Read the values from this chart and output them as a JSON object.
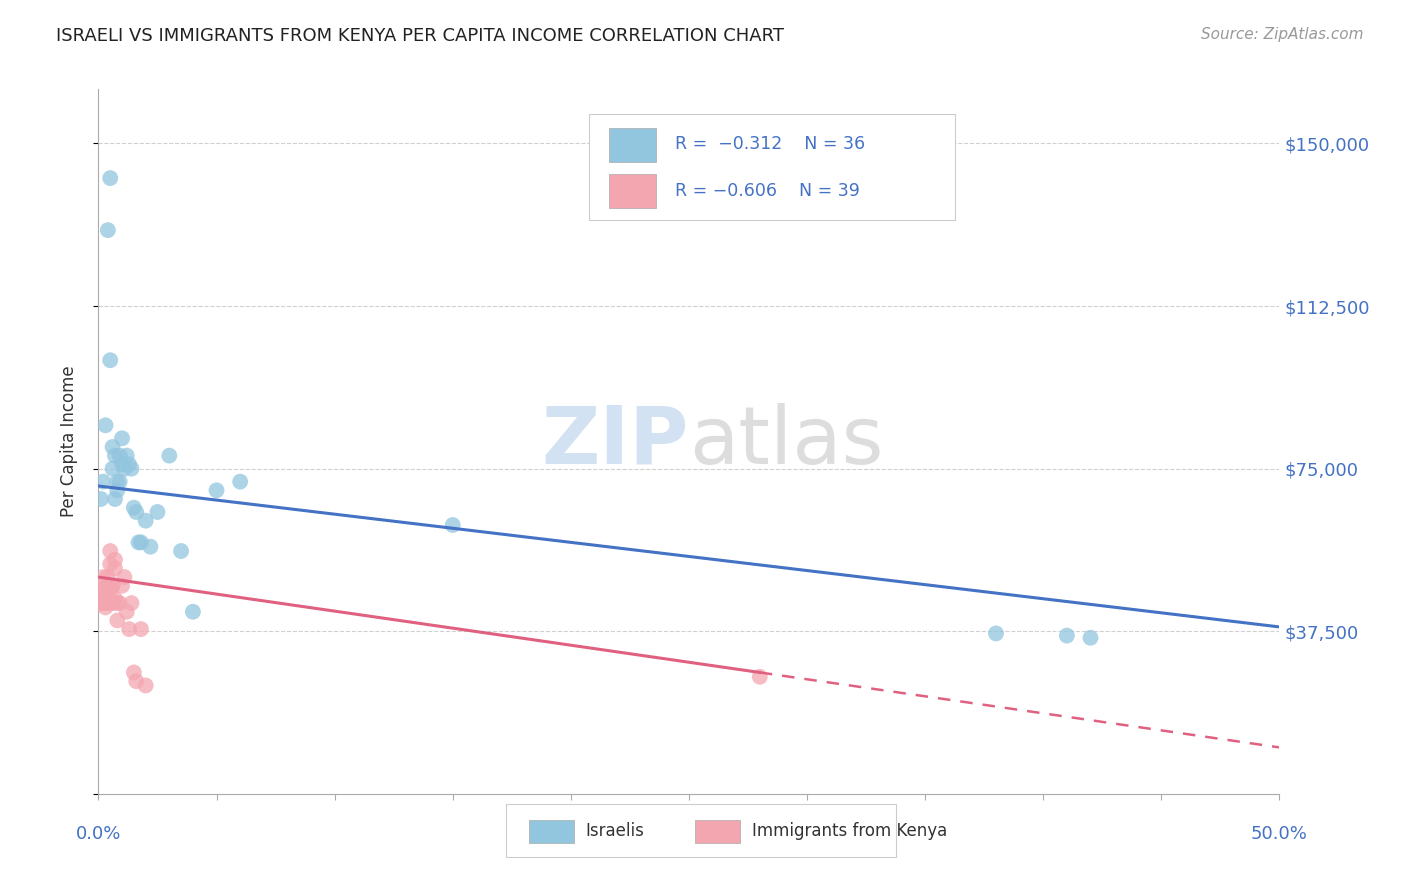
{
  "title": "ISRAELI VS IMMIGRANTS FROM KENYA PER CAPITA INCOME CORRELATION CHART",
  "source": "Source: ZipAtlas.com",
  "ylabel": "Per Capita Income",
  "watermark_zip": "ZIP",
  "watermark_atlas": "atlas",
  "ylim": [
    0,
    162500
  ],
  "xlim": [
    0.0,
    0.5
  ],
  "yticks": [
    0,
    37500,
    75000,
    112500,
    150000
  ],
  "ytick_labels": [
    "",
    "$37,500",
    "$75,000",
    "$112,500",
    "$150,000"
  ],
  "color_israeli": "#92c5de",
  "color_kenya": "#f4a6b0",
  "color_line_israeli": "#4472c4",
  "color_line_kenya": "#e06080",
  "background_color": "#ffffff",
  "grid_color": "#d0d0d0",
  "israeli_x": [
    0.001,
    0.002,
    0.003,
    0.004,
    0.005,
    0.005,
    0.006,
    0.006,
    0.007,
    0.007,
    0.008,
    0.008,
    0.009,
    0.009,
    0.01,
    0.01,
    0.011,
    0.012,
    0.013,
    0.014,
    0.015,
    0.016,
    0.017,
    0.018,
    0.02,
    0.022,
    0.025,
    0.03,
    0.035,
    0.04,
    0.05,
    0.06,
    0.15,
    0.38,
    0.41,
    0.42
  ],
  "israeli_y": [
    68000,
    72000,
    85000,
    130000,
    142000,
    100000,
    80000,
    75000,
    78000,
    68000,
    70000,
    72000,
    78000,
    72000,
    82000,
    76000,
    75000,
    78000,
    76000,
    75000,
    66000,
    65000,
    58000,
    58000,
    63000,
    57000,
    65000,
    78000,
    56000,
    42000,
    70000,
    72000,
    62000,
    37000,
    36500,
    36000
  ],
  "kenya_x": [
    0.001,
    0.001,
    0.001,
    0.001,
    0.002,
    0.002,
    0.002,
    0.002,
    0.002,
    0.003,
    0.003,
    0.003,
    0.003,
    0.004,
    0.004,
    0.004,
    0.005,
    0.005,
    0.005,
    0.005,
    0.006,
    0.006,
    0.006,
    0.007,
    0.007,
    0.007,
    0.008,
    0.008,
    0.009,
    0.01,
    0.011,
    0.012,
    0.013,
    0.014,
    0.015,
    0.016,
    0.018,
    0.02,
    0.28
  ],
  "kenya_y": [
    46000,
    46000,
    44000,
    44000,
    50000,
    48000,
    47000,
    45000,
    44000,
    46000,
    46000,
    44000,
    43000,
    50000,
    48000,
    44000,
    56000,
    53000,
    47000,
    44000,
    48000,
    48000,
    44000,
    54000,
    52000,
    45000,
    44000,
    40000,
    44000,
    48000,
    50000,
    42000,
    38000,
    44000,
    28000,
    26000,
    38000,
    25000,
    27000
  ],
  "line_israeli_x0": 0.0,
  "line_israeli_x1": 0.5,
  "line_israeli_y0": 71000,
  "line_israeli_y1": 38500,
  "line_kenya_solid_x0": 0.0,
  "line_kenya_solid_x1": 0.28,
  "line_kenya_y0": 50000,
  "line_kenya_y1": 28000,
  "line_kenya_dash_x0": 0.28,
  "line_kenya_dash_x1": 0.5
}
